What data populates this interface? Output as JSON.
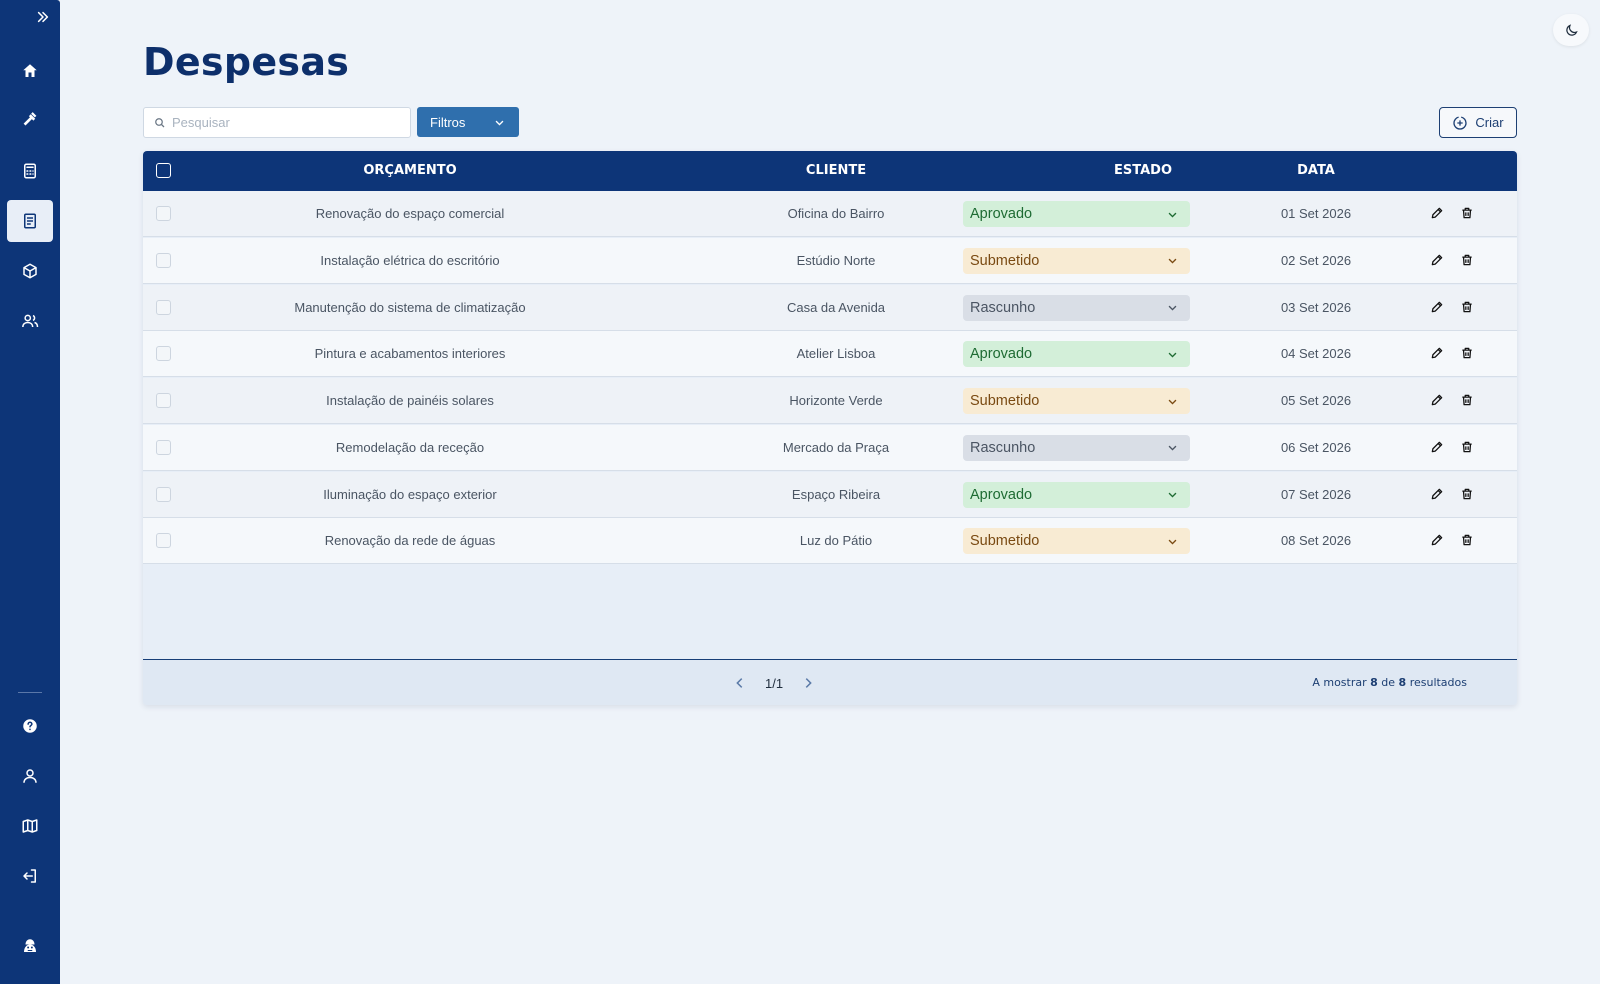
{
  "page": {
    "title": "Despesas"
  },
  "sidebar": {
    "top_items": [
      {
        "icon": "home-icon",
        "name": "sidebar-item-home"
      },
      {
        "icon": "hammer-icon",
        "name": "sidebar-item-tools"
      },
      {
        "icon": "calculator-icon",
        "name": "sidebar-item-calculator"
      },
      {
        "icon": "document-icon",
        "name": "sidebar-item-expenses",
        "active": true
      },
      {
        "icon": "box-icon",
        "name": "sidebar-item-products"
      },
      {
        "icon": "users-icon",
        "name": "sidebar-item-clients"
      }
    ],
    "bottom_items": [
      {
        "icon": "help-icon",
        "name": "sidebar-item-help"
      },
      {
        "icon": "user-icon",
        "name": "sidebar-item-profile"
      },
      {
        "icon": "map-icon",
        "name": "sidebar-item-map"
      },
      {
        "icon": "logout-icon",
        "name": "sidebar-item-logout"
      }
    ]
  },
  "toolbar": {
    "search_placeholder": "Pesquisar",
    "filter_label": "Filtros",
    "create_label": "Criar"
  },
  "table": {
    "headers": {
      "budget": "ORÇAMENTO",
      "client": "CLIENTE",
      "status": "ESTADO",
      "date": "DATA"
    },
    "rows": [
      {
        "budget": "Renovação do espaço comercial",
        "client": "Oficina do Bairro",
        "status": "Aprovado",
        "status_kind": "aprovado",
        "date": "01 Set 2026"
      },
      {
        "budget": "Instalação elétrica do escritório",
        "client": "Estúdio Norte",
        "status": "Submetido",
        "status_kind": "submetido",
        "date": "02 Set 2026"
      },
      {
        "budget": "Manutenção do sistema de climatização",
        "client": "Casa da Avenida",
        "status": "Rascunho",
        "status_kind": "rascunho",
        "date": "03 Set 2026"
      },
      {
        "budget": "Pintura e acabamentos interiores",
        "client": "Atelier Lisboa",
        "status": "Aprovado",
        "status_kind": "aprovado",
        "date": "04 Set 2026"
      },
      {
        "budget": "Instalação de painéis solares",
        "client": "Horizonte Verde",
        "status": "Submetido",
        "status_kind": "submetido",
        "date": "05 Set 2026"
      },
      {
        "budget": "Remodelação da receção",
        "client": "Mercado da Praça",
        "status": "Rascunho",
        "status_kind": "rascunho",
        "date": "06 Set 2026"
      },
      {
        "budget": "Iluminação do espaço exterior",
        "client": "Espaço Ribeira",
        "status": "Aprovado",
        "status_kind": "aprovado",
        "date": "07 Set 2026"
      },
      {
        "budget": "Renovação da rede de águas",
        "client": "Luz do Pátio",
        "status": "Submetido",
        "status_kind": "submetido",
        "date": "08 Set 2026"
      }
    ]
  },
  "pagination": {
    "page_indicator": "1/1",
    "results_prefix": "A mostrar",
    "shown": "8",
    "of_label": "de",
    "total": "8",
    "results_suffix": "resultados"
  },
  "colors": {
    "sidebar": "#0d3578",
    "accent": "#2f6fad",
    "title": "#0d2f6b",
    "approved_bg": "#d3efd9",
    "submitted_bg": "#f8ebd3",
    "draft_bg": "#d9dee6"
  }
}
